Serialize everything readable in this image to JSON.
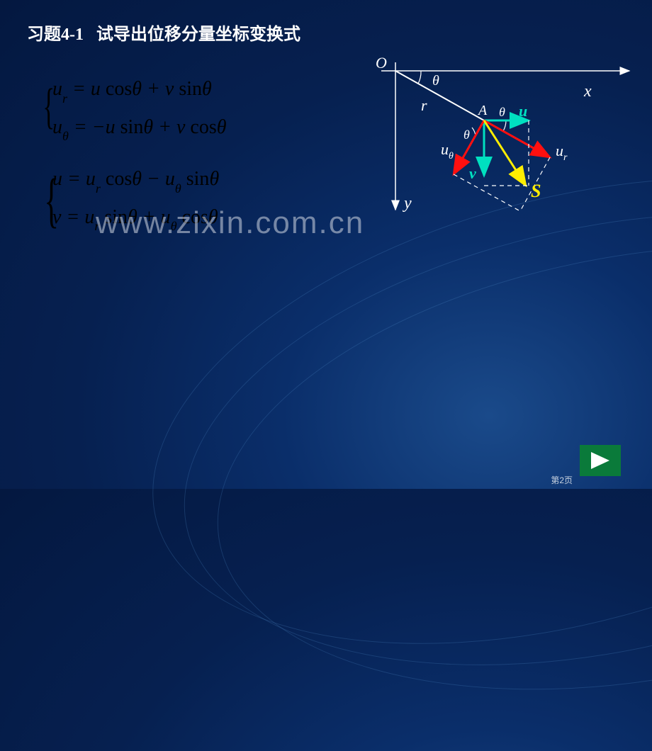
{
  "title": {
    "prefix": "习题4-1",
    "text": "试导出位移分量坐标变换式"
  },
  "equations": {
    "group1": {
      "brace_color": "#000000",
      "lines": [
        "u<sub>r</sub> = u <span class='fn'>cos</span>θ + v <span class='fn'>sin</span>θ",
        "u<sub>θ</sub> = −u <span class='fn'>sin</span>θ + v <span class='fn'>cos</span>θ"
      ]
    },
    "group2": {
      "brace_color": "#000000",
      "lines": [
        "u = u<sub>r</sub> <span class='fn'>cos</span>θ − u<sub>θ</sub> <span class='fn'>sin</span>θ",
        "v = u<sub>r</sub> <span class='fn'>sin</span>θ + u<sub>θ</sub> <span class='fn'>cos</span>θ"
      ]
    },
    "fontsize": 28,
    "color": "#000000"
  },
  "diagram": {
    "origin_label": "O",
    "x_axis_label": "x",
    "y_axis_label": "y",
    "r_label": "r",
    "point_label": "A",
    "angle_label": "θ",
    "u_label": "u",
    "v_label": "v",
    "ur_label": "u",
    "ur_sub": "r",
    "utheta_label": "u",
    "utheta_sub": "θ",
    "s_label": "S",
    "colors": {
      "axes": "#ffffff",
      "r_line": "#ffffff",
      "u_arrow": "#00e0c0",
      "v_arrow": "#00e0c0",
      "ur_arrow": "#ff1010",
      "utheta_arrow": "#ff1010",
      "s_arrow": "#ffee00",
      "dashed": "#ffffff",
      "text_white": "#ffffff",
      "text_cyan": "#00e0c0",
      "text_yellow": "#ffee00"
    },
    "stroke_widths": {
      "axes": 1.5,
      "vectors": 3
    }
  },
  "watermark": "www.zixin.com.cn",
  "page_number": "第2页",
  "nav": {
    "bg": "#0a7a3a",
    "arrow_color": "#ffffff"
  },
  "background": {
    "gradient_inner": "#1a4a8a",
    "gradient_outer": "#041840"
  }
}
